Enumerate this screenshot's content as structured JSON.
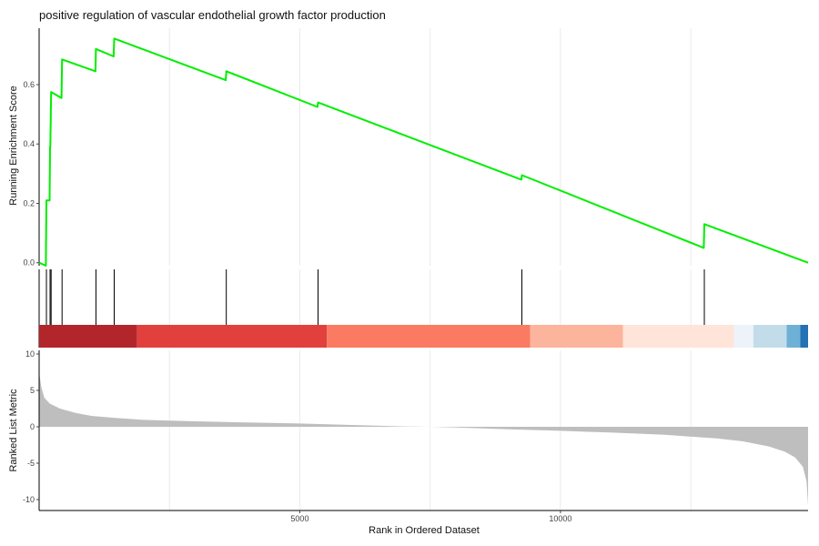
{
  "chart_data": {
    "type": "line",
    "title": "positive regulation of vascular endothelial growth factor production",
    "xlabel": "Rank in Ordered Dataset",
    "x_ticks": [
      5000,
      10000
    ],
    "xlim": [
      0,
      14750
    ],
    "grid": "vertical",
    "es_panel": {
      "ylabel": "Running Enrichment Score",
      "y_ticks": [
        "0.0",
        "0.2",
        "0.4",
        "0.6"
      ],
      "ylim": [
        -0.01,
        0.79
      ],
      "line_color": "#00ee00",
      "points": [
        {
          "x": 0,
          "y": 0.0
        },
        {
          "x": 130,
          "y": -0.01
        },
        {
          "x": 140,
          "y": 0.21
        },
        {
          "x": 200,
          "y": 0.21
        },
        {
          "x": 210,
          "y": 0.39
        },
        {
          "x": 215,
          "y": 0.39
        },
        {
          "x": 230,
          "y": 0.575
        },
        {
          "x": 430,
          "y": 0.555
        },
        {
          "x": 440,
          "y": 0.685
        },
        {
          "x": 1080,
          "y": 0.645
        },
        {
          "x": 1090,
          "y": 0.72
        },
        {
          "x": 1430,
          "y": 0.695
        },
        {
          "x": 1440,
          "y": 0.755
        },
        {
          "x": 3580,
          "y": 0.615
        },
        {
          "x": 3590,
          "y": 0.645
        },
        {
          "x": 5340,
          "y": 0.525
        },
        {
          "x": 5350,
          "y": 0.54
        },
        {
          "x": 9250,
          "y": 0.28
        },
        {
          "x": 9260,
          "y": 0.295
        },
        {
          "x": 12750,
          "y": 0.05
        },
        {
          "x": 12760,
          "y": 0.13
        },
        {
          "x": 14750,
          "y": 0.0
        }
      ]
    },
    "hits": [
      140,
      210,
      230,
      440,
      1090,
      1440,
      3590,
      5350,
      9260,
      12760
    ],
    "rank_bands": [
      {
        "from": 0,
        "to": 1880,
        "color": "#b2262b"
      },
      {
        "from": 1880,
        "to": 5520,
        "color": "#e2403d"
      },
      {
        "from": 5520,
        "to": 9420,
        "color": "#fa7a62"
      },
      {
        "from": 9420,
        "to": 11200,
        "color": "#fcb49c"
      },
      {
        "from": 11200,
        "to": 13330,
        "color": "#fee4d9"
      },
      {
        "from": 13330,
        "to": 13700,
        "color": "#eef3fa"
      },
      {
        "from": 13700,
        "to": 14340,
        "color": "#c3dcea"
      },
      {
        "from": 14340,
        "to": 14600,
        "color": "#6fb0d7"
      },
      {
        "from": 14600,
        "to": 14750,
        "color": "#2471b4"
      }
    ],
    "metric_panel": {
      "ylabel": "Ranked List Metric",
      "y_ticks": [
        "10",
        "5",
        "0",
        "-5",
        "-10"
      ],
      "ylim": [
        -11.5,
        10.5
      ],
      "fill_color": "#bebebe",
      "points": [
        {
          "x": 0,
          "y": 7.5
        },
        {
          "x": 40,
          "y": 5.5
        },
        {
          "x": 100,
          "y": 4.0
        },
        {
          "x": 200,
          "y": 3.2
        },
        {
          "x": 400,
          "y": 2.5
        },
        {
          "x": 700,
          "y": 1.9
        },
        {
          "x": 1000,
          "y": 1.5
        },
        {
          "x": 1500,
          "y": 1.2
        },
        {
          "x": 2000,
          "y": 0.95
        },
        {
          "x": 3000,
          "y": 0.75
        },
        {
          "x": 4000,
          "y": 0.6
        },
        {
          "x": 5000,
          "y": 0.45
        },
        {
          "x": 6000,
          "y": 0.25
        },
        {
          "x": 7000,
          "y": 0.05
        },
        {
          "x": 7500,
          "y": 0.0
        },
        {
          "x": 8000,
          "y": -0.1
        },
        {
          "x": 9000,
          "y": -0.35
        },
        {
          "x": 10000,
          "y": -0.55
        },
        {
          "x": 11000,
          "y": -0.8
        },
        {
          "x": 12000,
          "y": -1.1
        },
        {
          "x": 13000,
          "y": -1.6
        },
        {
          "x": 13500,
          "y": -2.0
        },
        {
          "x": 14000,
          "y": -2.7
        },
        {
          "x": 14300,
          "y": -3.4
        },
        {
          "x": 14500,
          "y": -4.2
        },
        {
          "x": 14650,
          "y": -5.5
        },
        {
          "x": 14720,
          "y": -7.5
        },
        {
          "x": 14750,
          "y": -10.8
        }
      ]
    }
  }
}
